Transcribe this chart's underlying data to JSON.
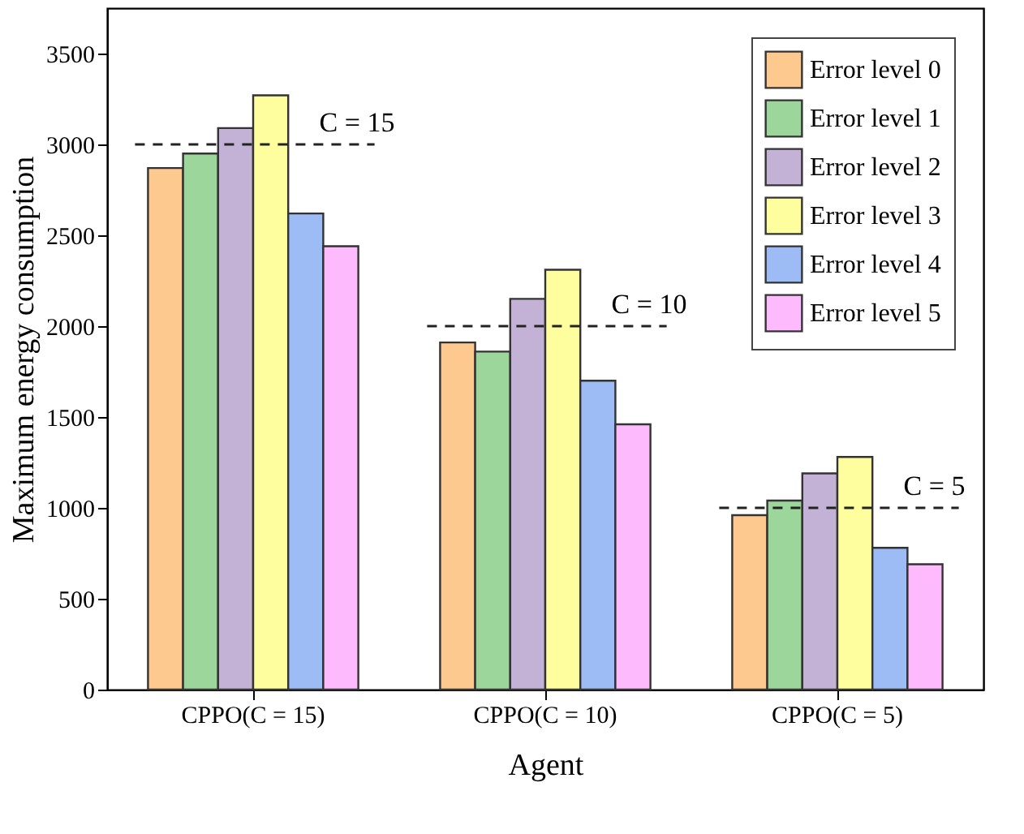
{
  "chart_data": {
    "type": "bar",
    "xlabel": "Agent",
    "ylabel": "Maximum energy consumption",
    "categories": [
      "CPPO(C = 15)",
      "CPPO(C = 10)",
      "CPPO(C = 5)"
    ],
    "series": [
      {
        "name": "Error level 0",
        "color": "#fdc98f",
        "values": [
          2870,
          1910,
          960
        ]
      },
      {
        "name": "Error level 1",
        "color": "#9dd69b",
        "values": [
          2950,
          1860,
          1040
        ]
      },
      {
        "name": "Error level 2",
        "color": "#c4b2d6",
        "values": [
          3090,
          2150,
          1190
        ]
      },
      {
        "name": "Error level 3",
        "color": "#fefe9e",
        "values": [
          3270,
          2310,
          1280
        ]
      },
      {
        "name": "Error level 4",
        "color": "#9dbbf5",
        "values": [
          2620,
          1700,
          780
        ]
      },
      {
        "name": "Error level 5",
        "color": "#fdbbfd",
        "values": [
          2440,
          1460,
          690
        ]
      }
    ],
    "ylim": [
      0,
      3750
    ],
    "yticks": [
      0,
      500,
      1000,
      1500,
      2000,
      2500,
      3000,
      3500
    ],
    "ref_lines": [
      {
        "axis": "y",
        "value": 3000,
        "line_style": "dashed"
      },
      {
        "axis": "y",
        "value": 2000,
        "line_style": "dashed"
      },
      {
        "axis": "y",
        "value": 1000,
        "line_style": "dashed"
      }
    ],
    "annotations": [
      {
        "text": "C = 15",
        "x": "CPPO(C = 15)",
        "y": 3000
      },
      {
        "text": "C = 10",
        "x": "CPPO(C = 10)",
        "y": 2000
      },
      {
        "text": "C = 5",
        "x": "CPPO(C = 5)",
        "y": 1000
      }
    ],
    "legend": "top right",
    "grid": false
  }
}
